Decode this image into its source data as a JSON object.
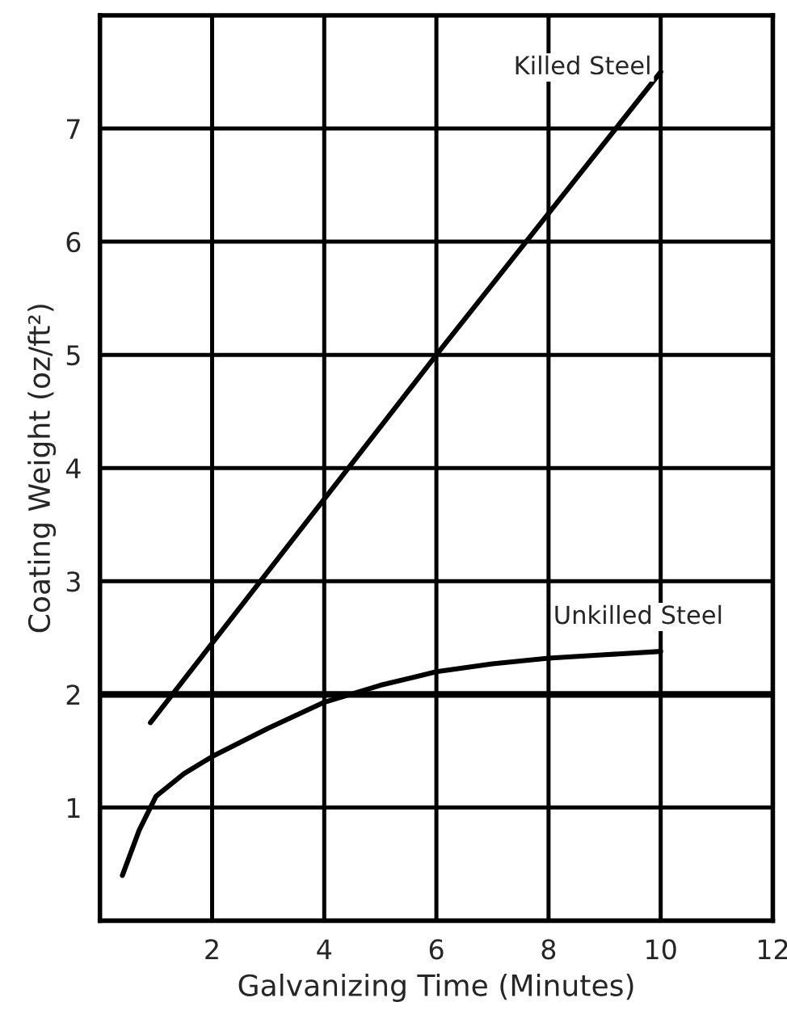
{
  "chart_data": {
    "type": "line",
    "xlabel": "Galvanizing Time (Minutes)",
    "ylabel": "Coating Weight (oz/ft²)",
    "xlim": [
      0,
      12
    ],
    "ylim": [
      0,
      8
    ],
    "xticks": [
      2,
      4,
      6,
      8,
      10,
      12
    ],
    "yticks": [
      1,
      2,
      3,
      4,
      5,
      6,
      7
    ],
    "grid": true,
    "legend": false,
    "marker": "none",
    "line_style": "solid",
    "ref_lines": [
      {
        "axis": "y",
        "value": 2,
        "label": null,
        "color": "#000000"
      }
    ],
    "series": [
      {
        "name": "Killed Steel",
        "color": "#000000",
        "x": [
          0.9,
          6,
          10
        ],
        "values": [
          1.75,
          5.0,
          7.5
        ]
      },
      {
        "name": "Unkilled Steel",
        "color": "#000000",
        "x": [
          0.4,
          0.7,
          1,
          1.5,
          2,
          3,
          4,
          5,
          6,
          7,
          8,
          9,
          10
        ],
        "values": [
          0.4,
          0.8,
          1.1,
          1.3,
          1.45,
          1.7,
          1.93,
          2.08,
          2.2,
          2.27,
          2.32,
          2.35,
          2.38
        ]
      }
    ]
  }
}
